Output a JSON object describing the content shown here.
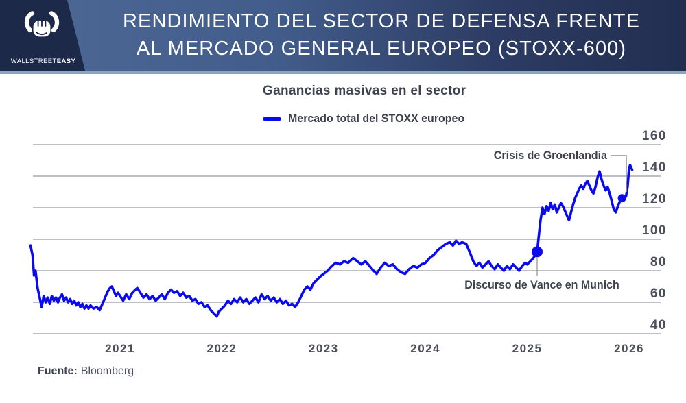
{
  "header": {
    "brand": {
      "name_regular": "WALLSTREET",
      "name_bold": "EASY",
      "icon": "bull-fist-icon"
    },
    "title_line1": "RENDIMIENTO DEL SECTOR DE DEFENSA FRENTE",
    "title_line2": "AL MERCADO GENERAL EUROPEO (STOXX-600)"
  },
  "chart": {
    "subtitle": "Ganancias masivas en el sector",
    "legend": {
      "label": "Mercado total del STOXX europeo",
      "color": "#0a0af0"
    },
    "annotations": [
      {
        "id": "groenlandia",
        "text": "Crisis de Groenlandia"
      },
      {
        "id": "vance",
        "text": "Discurso de Vance en Munich"
      }
    ]
  },
  "footer": {
    "source_label": "Fuente:",
    "source_value": "Bloomberg"
  },
  "colors": {
    "line": "#0a0af0",
    "gridline": "#97999e",
    "axis_text": "#4b4f5c",
    "header_navy": "#1d2949",
    "header_blue": "#4c6694",
    "header_strip": "#8ca4c7",
    "leader_line": "#8f8f8f"
  },
  "chart_data": {
    "type": "line",
    "title": "Ganancias masivas en el sector",
    "xlabel": "",
    "ylabel": "",
    "x_ticks": [
      2021,
      2022,
      2023,
      2024,
      2025,
      2026
    ],
    "y_ticks": [
      40,
      60,
      80,
      100,
      120,
      140,
      160
    ],
    "ylim": [
      40,
      160
    ],
    "xlim": [
      2020.1,
      2026.06
    ],
    "grid": true,
    "legend_position": "top-left",
    "series": [
      {
        "name": "Mercado total del STOXX europeo",
        "color": "#0a0af0",
        "points": [
          [
            2020.12,
            96
          ],
          [
            2020.14,
            90
          ],
          [
            2020.155,
            77
          ],
          [
            2020.17,
            80
          ],
          [
            2020.19,
            69
          ],
          [
            2020.21,
            63
          ],
          [
            2020.23,
            57
          ],
          [
            2020.25,
            64
          ],
          [
            2020.27,
            60
          ],
          [
            2020.29,
            63
          ],
          [
            2020.31,
            59
          ],
          [
            2020.33,
            64
          ],
          [
            2020.35,
            61
          ],
          [
            2020.37,
            63
          ],
          [
            2020.39,
            60
          ],
          [
            2020.41,
            63
          ],
          [
            2020.43,
            65
          ],
          [
            2020.45,
            61
          ],
          [
            2020.47,
            63
          ],
          [
            2020.49,
            60
          ],
          [
            2020.51,
            62
          ],
          [
            2020.53,
            59
          ],
          [
            2020.55,
            61
          ],
          [
            2020.57,
            58
          ],
          [
            2020.59,
            60
          ],
          [
            2020.61,
            57
          ],
          [
            2020.63,
            59
          ],
          [
            2020.65,
            56
          ],
          [
            2020.67,
            58
          ],
          [
            2020.69,
            56
          ],
          [
            2020.71,
            58
          ],
          [
            2020.74,
            56
          ],
          [
            2020.77,
            57
          ],
          [
            2020.8,
            55
          ],
          [
            2020.82,
            58
          ],
          [
            2020.84,
            61
          ],
          [
            2020.86,
            64
          ],
          [
            2020.88,
            67
          ],
          [
            2020.9,
            69
          ],
          [
            2020.92,
            70
          ],
          [
            2020.94,
            67
          ],
          [
            2020.96,
            64
          ],
          [
            2020.98,
            66
          ],
          [
            2021.0,
            64
          ],
          [
            2021.03,
            61
          ],
          [
            2021.06,
            65
          ],
          [
            2021.09,
            62
          ],
          [
            2021.12,
            66
          ],
          [
            2021.15,
            68
          ],
          [
            2021.17,
            69
          ],
          [
            2021.2,
            66
          ],
          [
            2021.23,
            63
          ],
          [
            2021.26,
            65
          ],
          [
            2021.29,
            62
          ],
          [
            2021.32,
            64
          ],
          [
            2021.35,
            61
          ],
          [
            2021.38,
            63
          ],
          [
            2021.41,
            65
          ],
          [
            2021.44,
            62
          ],
          [
            2021.47,
            66
          ],
          [
            2021.5,
            68
          ],
          [
            2021.53,
            66
          ],
          [
            2021.56,
            67
          ],
          [
            2021.59,
            64
          ],
          [
            2021.62,
            66
          ],
          [
            2021.65,
            63
          ],
          [
            2021.68,
            64
          ],
          [
            2021.71,
            61
          ],
          [
            2021.74,
            62
          ],
          [
            2021.77,
            59
          ],
          [
            2021.8,
            60
          ],
          [
            2021.83,
            57
          ],
          [
            2021.86,
            58
          ],
          [
            2021.89,
            55
          ],
          [
            2021.92,
            53
          ],
          [
            2021.95,
            51
          ],
          [
            2021.97,
            54
          ],
          [
            2022.0,
            56
          ],
          [
            2022.03,
            58
          ],
          [
            2022.06,
            61
          ],
          [
            2022.09,
            59
          ],
          [
            2022.12,
            62
          ],
          [
            2022.15,
            60
          ],
          [
            2022.18,
            63
          ],
          [
            2022.21,
            60
          ],
          [
            2022.24,
            62
          ],
          [
            2022.27,
            59
          ],
          [
            2022.3,
            61
          ],
          [
            2022.33,
            63
          ],
          [
            2022.36,
            60
          ],
          [
            2022.39,
            65
          ],
          [
            2022.42,
            62
          ],
          [
            2022.45,
            64
          ],
          [
            2022.48,
            61
          ],
          [
            2022.51,
            63
          ],
          [
            2022.54,
            60
          ],
          [
            2022.57,
            62
          ],
          [
            2022.6,
            59
          ],
          [
            2022.63,
            61
          ],
          [
            2022.66,
            58
          ],
          [
            2022.69,
            59
          ],
          [
            2022.72,
            57
          ],
          [
            2022.75,
            60
          ],
          [
            2022.78,
            64
          ],
          [
            2022.81,
            68
          ],
          [
            2022.84,
            70
          ],
          [
            2022.87,
            68
          ],
          [
            2022.9,
            72
          ],
          [
            2022.93,
            74
          ],
          [
            2022.96,
            76
          ],
          [
            2023.0,
            78
          ],
          [
            2023.04,
            80
          ],
          [
            2023.08,
            83
          ],
          [
            2023.12,
            85
          ],
          [
            2023.16,
            84
          ],
          [
            2023.2,
            86
          ],
          [
            2023.24,
            85
          ],
          [
            2023.29,
            88
          ],
          [
            2023.33,
            86
          ],
          [
            2023.37,
            84
          ],
          [
            2023.41,
            86
          ],
          [
            2023.45,
            83
          ],
          [
            2023.49,
            80
          ],
          [
            2023.52,
            78
          ],
          [
            2023.56,
            82
          ],
          [
            2023.6,
            85
          ],
          [
            2023.64,
            83
          ],
          [
            2023.68,
            84
          ],
          [
            2023.72,
            81
          ],
          [
            2023.76,
            79
          ],
          [
            2023.8,
            78
          ],
          [
            2023.84,
            81
          ],
          [
            2023.88,
            83
          ],
          [
            2023.92,
            82
          ],
          [
            2023.96,
            84
          ],
          [
            2024.0,
            85
          ],
          [
            2024.04,
            88
          ],
          [
            2024.08,
            90
          ],
          [
            2024.12,
            93
          ],
          [
            2024.16,
            95
          ],
          [
            2024.2,
            97
          ],
          [
            2024.24,
            98
          ],
          [
            2024.27,
            96
          ],
          [
            2024.3,
            99
          ],
          [
            2024.33,
            97
          ],
          [
            2024.36,
            98
          ],
          [
            2024.4,
            97
          ],
          [
            2024.44,
            91
          ],
          [
            2024.47,
            86
          ],
          [
            2024.5,
            83
          ],
          [
            2024.53,
            85
          ],
          [
            2024.56,
            82
          ],
          [
            2024.59,
            84
          ],
          [
            2024.62,
            86
          ],
          [
            2024.65,
            83
          ],
          [
            2024.68,
            81
          ],
          [
            2024.71,
            84
          ],
          [
            2024.74,
            82
          ],
          [
            2024.77,
            80
          ],
          [
            2024.8,
            83
          ],
          [
            2024.83,
            81
          ],
          [
            2024.86,
            84
          ],
          [
            2024.89,
            82
          ],
          [
            2024.92,
            80
          ],
          [
            2024.95,
            83
          ],
          [
            2024.98,
            85
          ],
          [
            2025.0,
            84
          ],
          [
            2025.03,
            86
          ],
          [
            2025.06,
            88
          ],
          [
            2025.097,
            92
          ],
          [
            2025.11,
            100
          ],
          [
            2025.13,
            112
          ],
          [
            2025.15,
            120
          ],
          [
            2025.17,
            116
          ],
          [
            2025.19,
            121
          ],
          [
            2025.21,
            118
          ],
          [
            2025.23,
            123
          ],
          [
            2025.25,
            119
          ],
          [
            2025.27,
            122
          ],
          [
            2025.29,
            117
          ],
          [
            2025.31,
            120
          ],
          [
            2025.33,
            123
          ],
          [
            2025.35,
            121
          ],
          [
            2025.37,
            118
          ],
          [
            2025.39,
            115
          ],
          [
            2025.41,
            112
          ],
          [
            2025.43,
            117
          ],
          [
            2025.45,
            122
          ],
          [
            2025.47,
            126
          ],
          [
            2025.49,
            129
          ],
          [
            2025.51,
            132
          ],
          [
            2025.53,
            134
          ],
          [
            2025.55,
            132
          ],
          [
            2025.57,
            135
          ],
          [
            2025.59,
            137
          ],
          [
            2025.61,
            134
          ],
          [
            2025.63,
            131
          ],
          [
            2025.65,
            129
          ],
          [
            2025.67,
            133
          ],
          [
            2025.69,
            139
          ],
          [
            2025.71,
            143
          ],
          [
            2025.73,
            138
          ],
          [
            2025.75,
            134
          ],
          [
            2025.77,
            131
          ],
          [
            2025.79,
            133
          ],
          [
            2025.81,
            129
          ],
          [
            2025.83,
            124
          ],
          [
            2025.85,
            119
          ],
          [
            2025.87,
            117
          ],
          [
            2025.89,
            121
          ],
          [
            2025.91,
            124
          ],
          [
            2025.93,
            126
          ],
          [
            2025.95,
            126
          ],
          [
            2025.97,
            127
          ],
          [
            2025.985,
            133
          ],
          [
            2026.0,
            145
          ],
          [
            2026.01,
            147
          ],
          [
            2026.03,
            144
          ]
        ]
      }
    ],
    "markers": [
      {
        "t": 2025.097,
        "v": 92,
        "r": 8,
        "label": "Discurso de Vance en Munich"
      },
      {
        "t": 2025.93,
        "v": 126,
        "r": 6,
        "label": "Crisis de Groenlandia"
      }
    ]
  }
}
